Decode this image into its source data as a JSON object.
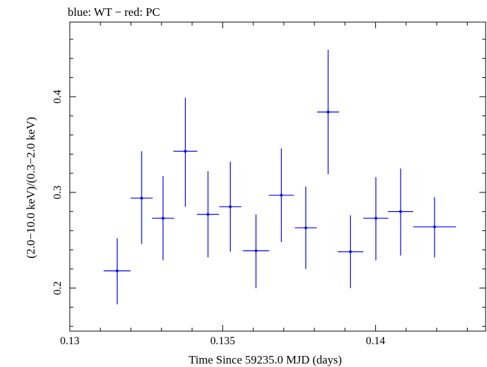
{
  "chart_data": {
    "type": "scatter",
    "title": "blue: WT − red: PC",
    "xlabel": "Time Since 59235.0 MJD (days)",
    "ylabel": "(2.0−10.0 keV)/(0.3−2.0 keV)",
    "xlim": [
      0.13,
      0.1436
    ],
    "ylim": [
      0.155,
      0.478
    ],
    "xticks": [
      {
        "value": 0.13,
        "label": "0.13"
      },
      {
        "value": 0.135,
        "label": "0.135"
      },
      {
        "value": 0.14,
        "label": "0.14"
      }
    ],
    "yticks": [
      {
        "value": 0.2,
        "label": "0.2"
      },
      {
        "value": 0.3,
        "label": "0.3"
      },
      {
        "value": 0.4,
        "label": "0.4"
      }
    ],
    "grid": false,
    "series": [
      {
        "name": "WT",
        "color": "#0000ee",
        "points": [
          {
            "x": 0.13155,
            "y": 0.218,
            "xerr": 0.00044,
            "ylo": 0.183,
            "yhi": 0.252
          },
          {
            "x": 0.13235,
            "y": 0.294,
            "xerr": 0.00036,
            "ylo": 0.246,
            "yhi": 0.343
          },
          {
            "x": 0.13305,
            "y": 0.273,
            "xerr": 0.00036,
            "ylo": 0.229,
            "yhi": 0.317
          },
          {
            "x": 0.13378,
            "y": 0.343,
            "xerr": 0.00039,
            "ylo": 0.285,
            "yhi": 0.399
          },
          {
            "x": 0.13452,
            "y": 0.277,
            "xerr": 0.00036,
            "ylo": 0.232,
            "yhi": 0.322
          },
          {
            "x": 0.13525,
            "y": 0.285,
            "xerr": 0.00036,
            "ylo": 0.238,
            "yhi": 0.332
          },
          {
            "x": 0.13609,
            "y": 0.239,
            "xerr": 0.00043,
            "ylo": 0.2,
            "yhi": 0.277
          },
          {
            "x": 0.13692,
            "y": 0.297,
            "xerr": 0.00041,
            "ylo": 0.248,
            "yhi": 0.346
          },
          {
            "x": 0.13772,
            "y": 0.263,
            "xerr": 0.00036,
            "ylo": 0.22,
            "yhi": 0.306
          },
          {
            "x": 0.13845,
            "y": 0.384,
            "xerr": 0.00036,
            "ylo": 0.319,
            "yhi": 0.449
          },
          {
            "x": 0.13918,
            "y": 0.238,
            "xerr": 0.00042,
            "ylo": 0.2,
            "yhi": 0.276
          },
          {
            "x": 0.14001,
            "y": 0.273,
            "xerr": 0.00041,
            "ylo": 0.229,
            "yhi": 0.316
          },
          {
            "x": 0.14082,
            "y": 0.28,
            "xerr": 0.00041,
            "ylo": 0.234,
            "yhi": 0.325
          },
          {
            "x": 0.14193,
            "y": 0.264,
            "xerr": 0.0007,
            "ylo": 0.232,
            "yhi": 0.295
          }
        ]
      }
    ]
  }
}
